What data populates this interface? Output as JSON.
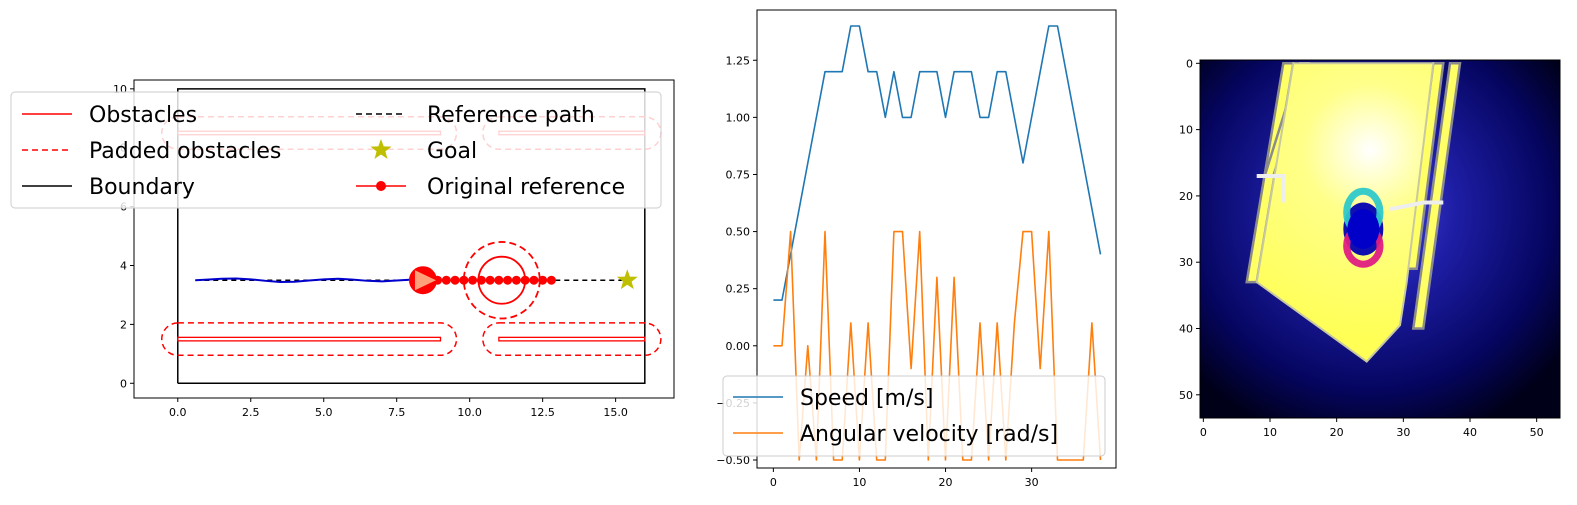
{
  "chart_data": [
    {
      "type": "line",
      "subtype": "map",
      "x_ticks": [
        0.0,
        2.5,
        5.0,
        7.5,
        10.0,
        12.5,
        15.0
      ],
      "y_ticks": [
        0,
        2,
        4,
        6,
        8,
        10
      ],
      "xlim": [
        -1.5,
        17.0
      ],
      "ylim": [
        -0.5,
        10.3
      ],
      "boundary": [
        [
          0,
          0
        ],
        [
          16,
          0
        ],
        [
          16,
          10
        ],
        [
          0,
          10
        ],
        [
          0,
          0
        ]
      ],
      "obstacles": [
        {
          "x": [
            0,
            9
          ],
          "y": [
            1.5,
            1.5
          ]
        },
        {
          "x": [
            11,
            16
          ],
          "y": [
            1.5,
            1.5
          ]
        },
        {
          "x": [
            0,
            9
          ],
          "y": [
            8.5,
            8.5
          ]
        },
        {
          "x": [
            11,
            16
          ],
          "y": [
            8.5,
            8.5
          ]
        }
      ],
      "padded_obstacles": [
        {
          "x": [
            0,
            9
          ],
          "y": [
            1.5,
            1.5
          ],
          "pad": 0.55
        },
        {
          "x": [
            11,
            16
          ],
          "y": [
            1.5,
            1.5
          ],
          "pad": 0.55
        },
        {
          "x": [
            0,
            9
          ],
          "y": [
            8.5,
            8.5
          ],
          "pad": 0.55
        },
        {
          "x": [
            11,
            16
          ],
          "y": [
            8.5,
            8.5
          ],
          "pad": 0.55
        }
      ],
      "dynamic_obstacle": {
        "center": [
          11.1,
          3.5
        ],
        "radius": 0.8,
        "padded_radius": 1.3
      },
      "reference_path": {
        "x": [
          0.6,
          15.4
        ],
        "y": [
          3.5,
          3.5
        ]
      },
      "goal": [
        15.4,
        3.5
      ],
      "robot": [
        8.4,
        3.5
      ],
      "trajectory": {
        "x": [
          0.6,
          1.0,
          1.5,
          2.0,
          2.5,
          3.0,
          3.5,
          4.0,
          4.5,
          5.0,
          5.5,
          6.0,
          6.5,
          7.0,
          7.5,
          8.0,
          8.4
        ],
        "y": [
          3.5,
          3.52,
          3.55,
          3.56,
          3.53,
          3.48,
          3.44,
          3.45,
          3.49,
          3.53,
          3.55,
          3.52,
          3.48,
          3.46,
          3.49,
          3.52,
          3.5
        ]
      },
      "original_reference": {
        "x": [
          8.6,
          8.9,
          9.2,
          9.5,
          9.8,
          10.1,
          10.4,
          10.7,
          11.0,
          11.3,
          11.6,
          11.9,
          12.2,
          12.5,
          12.8
        ],
        "y": [
          3.5,
          3.5,
          3.5,
          3.5,
          3.5,
          3.5,
          3.5,
          3.5,
          3.5,
          3.5,
          3.5,
          3.5,
          3.5,
          3.5,
          3.5
        ]
      },
      "legend": {
        "placement": "upper-left",
        "entries": [
          "Obstacles",
          "Padded obstacles",
          "Boundary",
          "Reference path",
          "Goal",
          "Original reference"
        ]
      },
      "colors": {
        "obstacle": "#ff0000",
        "trajectory": "#0000cc",
        "goal": "#bfbf00",
        "robot_head": "#ffa07a"
      }
    },
    {
      "type": "line",
      "x_ticks": [
        0,
        10,
        20,
        30
      ],
      "y_ticks": [
        -0.5,
        -0.25,
        0.0,
        0.25,
        0.5,
        0.75,
        1.0,
        1.25
      ],
      "y_tick_labels": [
        "-0.50",
        "-0.25",
        "0.00",
        "0.25",
        "0.50",
        "0.75",
        "1.00",
        "1.25"
      ],
      "xlim": [
        -1.9,
        39.8
      ],
      "ylim": [
        -0.535,
        1.47
      ],
      "x": [
        0,
        1,
        2,
        3,
        4,
        5,
        6,
        7,
        8,
        9,
        10,
        11,
        12,
        13,
        14,
        15,
        16,
        17,
        18,
        19,
        20,
        21,
        22,
        23,
        24,
        25,
        26,
        27,
        28,
        29,
        30,
        31,
        32,
        33,
        34,
        35,
        36,
        37,
        38
      ],
      "series": [
        {
          "name": "Speed [m/s]",
          "color": "#1f77b4",
          "values": [
            0.2,
            0.2,
            0.4,
            0.6,
            0.8,
            1.0,
            1.2,
            1.2,
            1.2,
            1.4,
            1.4,
            1.2,
            1.2,
            1.0,
            1.2,
            1.0,
            1.0,
            1.2,
            1.2,
            1.2,
            1.0,
            1.2,
            1.2,
            1.2,
            1.0,
            1.0,
            1.2,
            1.2,
            1.0,
            0.8,
            1.0,
            1.2,
            1.4,
            1.4,
            1.2,
            1.0,
            0.8,
            0.6,
            0.4
          ]
        },
        {
          "name": "Angular velocity [rad/s]",
          "color": "#ff7f0e",
          "values": [
            0.0,
            0.0,
            0.5,
            -0.5,
            0.0,
            -0.5,
            0.5,
            -0.5,
            -0.5,
            0.1,
            -0.5,
            0.1,
            -0.5,
            -0.5,
            0.5,
            0.5,
            -0.1,
            0.5,
            -0.5,
            0.3,
            -0.5,
            0.3,
            -0.5,
            -0.5,
            0.1,
            -0.5,
            0.1,
            -0.5,
            0.1,
            0.5,
            0.5,
            -0.1,
            0.5,
            -0.5,
            -0.5,
            -0.5,
            -0.5,
            0.1,
            -0.5
          ]
        }
      ],
      "legend": {
        "placement": "lower-left",
        "entries": [
          "Speed [m/s]",
          "Angular velocity [rad/s]"
        ]
      }
    },
    {
      "type": "heatmap",
      "x_ticks": [
        0,
        10,
        20,
        30,
        40,
        50
      ],
      "y_ticks": [
        0,
        10,
        20,
        30,
        40,
        50
      ],
      "xlim": [
        -0.5,
        53.5
      ],
      "ylim": [
        53.5,
        -0.5
      ],
      "grid_size": 54,
      "free_space_polygon": [
        [
          13.5,
          0
        ],
        [
          34.5,
          0
        ],
        [
          30.5,
          33
        ],
        [
          29.5,
          39.5
        ],
        [
          24.5,
          45
        ],
        [
          8,
          33
        ]
      ],
      "obstacle_polygons": [
        [
          [
            12,
            0
          ],
          [
            13.5,
            0
          ],
          [
            8,
            33
          ],
          [
            6.5,
            33
          ]
        ],
        [
          [
            14.5,
            0
          ],
          [
            15.8,
            0
          ],
          [
            10.5,
            17
          ],
          [
            9.2,
            17
          ]
        ],
        [
          [
            34.5,
            0
          ],
          [
            36,
            0
          ],
          [
            32,
            31
          ],
          [
            30.5,
            31
          ]
        ],
        [
          [
            37,
            0
          ],
          [
            38.5,
            0
          ],
          [
            33,
            40
          ],
          [
            31.5,
            40
          ]
        ]
      ],
      "obstacle_blobs": [
        {
          "center": [
            24,
            22.5
          ],
          "rx": 2.5,
          "ry": 3.2,
          "color": "#2ec9c9"
        },
        {
          "center": [
            24,
            27.5
          ],
          "rx": 2.5,
          "ry": 2.8,
          "color": "#e01e82"
        }
      ],
      "gradient_center": [
        25,
        18
      ]
    }
  ],
  "legend_labels": {
    "obstacles": "Obstacles",
    "padded_obstacles": "Padded obstacles",
    "boundary": "Boundary",
    "reference_path": "Reference path",
    "goal": "Goal",
    "original_reference": "Original reference",
    "speed": "Speed [m/s]",
    "angular_velocity": "Angular velocity [rad/s]"
  }
}
